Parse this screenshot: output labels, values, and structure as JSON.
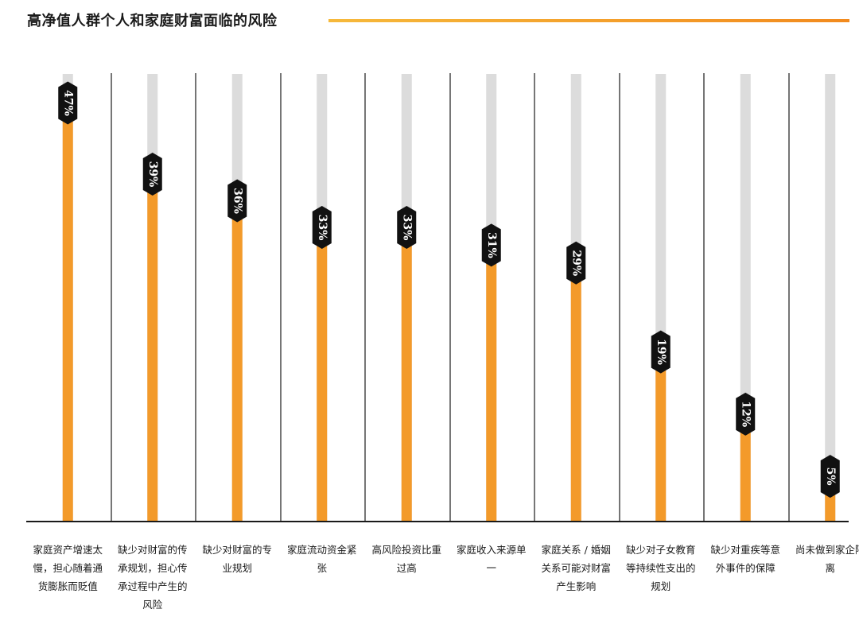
{
  "chart_data": {
    "type": "bar",
    "title": "高净值人群个人和家庭财富面临的风险",
    "categories": [
      "家庭资产增速太慢，担心随着通货膨胀而贬值",
      "缺少对财富的传承规划，担心传承过程中产生的风险",
      "缺少对财富的专业规划",
      "家庭流动资金紧张",
      "高风险投资比重过高",
      "家庭收入来源单一",
      "家庭关系 / 婚姻关系可能对财富产生影响",
      "缺少对子女教育等持续性支出的规划",
      "缺少对重疾等意外事件的保障",
      "尚未做到家企隔离"
    ],
    "values": [
      47,
      39,
      36,
      33,
      33,
      31,
      29,
      19,
      12,
      5
    ],
    "value_labels": [
      "47%",
      "39%",
      "36%",
      "33%",
      "33%",
      "31%",
      "29%",
      "19%",
      "12%",
      "5%"
    ],
    "ylim": [
      0,
      100
    ],
    "colors": {
      "bar": "#f39a2a",
      "track": "#dcdcdc",
      "badge": "#111111",
      "axis": "#1a1a1a"
    }
  }
}
